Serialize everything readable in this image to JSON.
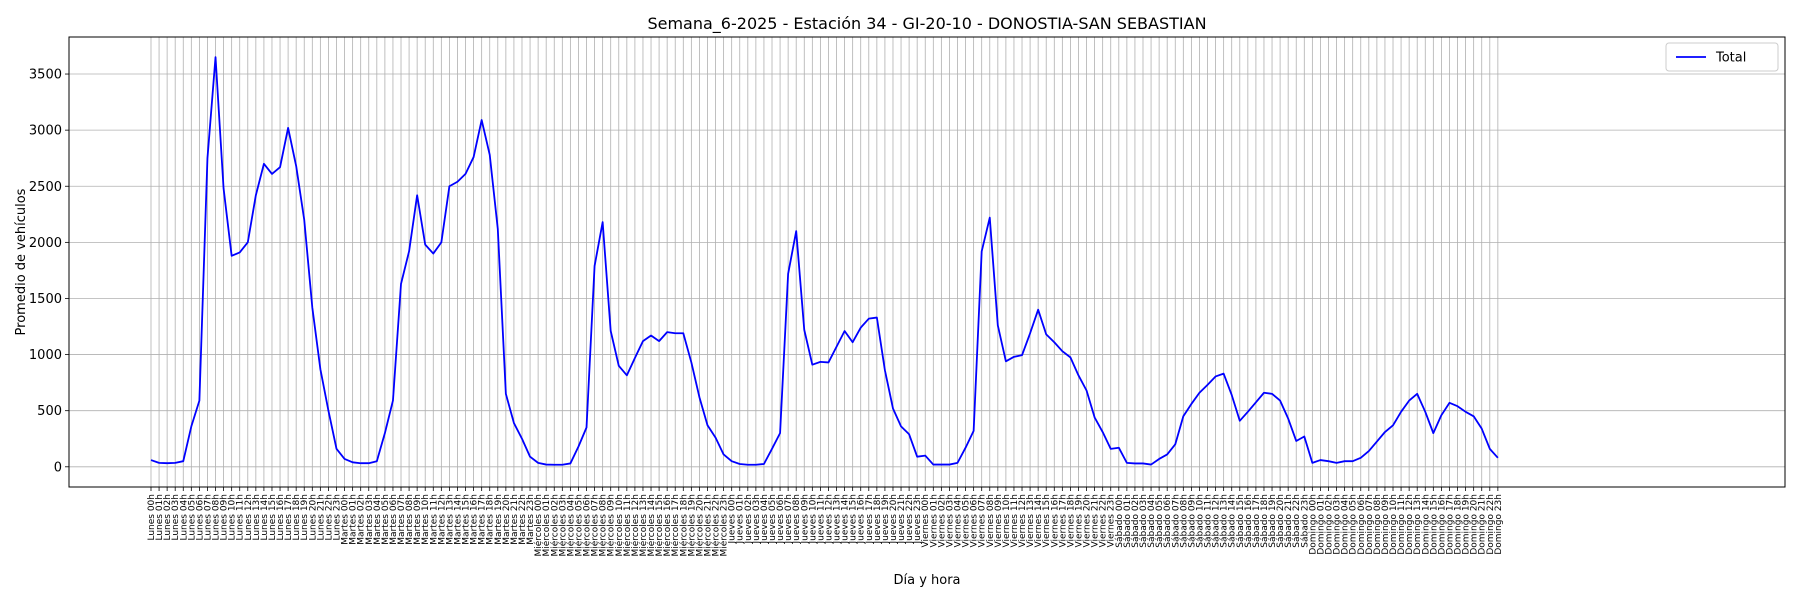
{
  "chart_data": {
    "type": "line",
    "title": "Semana_6-2025 - Estación 34 - GI-20-10  - DONOSTIA-SAN SEBASTIAN",
    "xlabel": "Día y hora",
    "ylabel": "Promedio de vehículos",
    "ylim": [
      -180,
      3830
    ],
    "yticks": [
      0,
      500,
      1000,
      1500,
      2000,
      2500,
      3000,
      3500
    ],
    "grid": true,
    "legend_position": "top-right",
    "days": [
      "Lunes",
      "Martes",
      "Miércoles",
      "Jueves",
      "Viernes",
      "Sábado",
      "Domingo"
    ],
    "series": [
      {
        "name": "Total",
        "color": "#0000ff",
        "values": [
          60,
          35,
          32,
          35,
          50,
          360,
          590,
          2750,
          3650,
          2480,
          1880,
          1910,
          2000,
          2420,
          2700,
          2610,
          2670,
          3020,
          2680,
          2200,
          1420,
          870,
          500,
          160,
          70,
          40,
          32,
          32,
          50,
          300,
          590,
          1630,
          1920,
          2420,
          1980,
          1900,
          2000,
          2500,
          2540,
          2610,
          2760,
          3090,
          2780,
          2120,
          650,
          390,
          250,
          90,
          35,
          20,
          18,
          18,
          30,
          180,
          350,
          1790,
          2180,
          1210,
          900,
          815,
          970,
          1120,
          1170,
          1120,
          1200,
          1190,
          1190,
          930,
          620,
          370,
          260,
          110,
          50,
          25,
          18,
          18,
          25,
          160,
          300,
          1720,
          2100,
          1220,
          910,
          935,
          930,
          1070,
          1210,
          1110,
          1240,
          1320,
          1330,
          860,
          520,
          360,
          290,
          90,
          100,
          20,
          20,
          20,
          35,
          170,
          320,
          1920,
          2220,
          1260,
          940,
          980,
          995,
          1190,
          1400,
          1180,
          1110,
          1030,
          975,
          815,
          680,
          440,
          310,
          160,
          170,
          35,
          30,
          30,
          20,
          70,
          110,
          200,
          450,
          560,
          660,
          730,
          805,
          830,
          640,
          410,
          490,
          575,
          660,
          650,
          590,
          430,
          230,
          270,
          35,
          60,
          50,
          35,
          50,
          50,
          80,
          140,
          225,
          310,
          370,
          490,
          590,
          650,
          490,
          300,
          460,
          570,
          540,
          490,
          450,
          340,
          160,
          80
        ]
      }
    ]
  }
}
